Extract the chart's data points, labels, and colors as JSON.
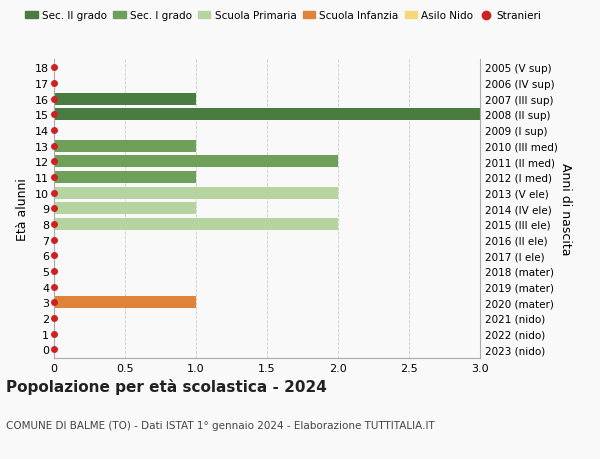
{
  "ages": [
    18,
    17,
    16,
    15,
    14,
    13,
    12,
    11,
    10,
    9,
    8,
    7,
    6,
    5,
    4,
    3,
    2,
    1,
    0
  ],
  "right_labels": [
    "2005 (V sup)",
    "2006 (IV sup)",
    "2007 (III sup)",
    "2008 (II sup)",
    "2009 (I sup)",
    "2010 (III med)",
    "2011 (II med)",
    "2012 (I med)",
    "2013 (V ele)",
    "2014 (IV ele)",
    "2015 (III ele)",
    "2016 (II ele)",
    "2017 (I ele)",
    "2018 (mater)",
    "2019 (mater)",
    "2020 (mater)",
    "2021 (nido)",
    "2022 (nido)",
    "2023 (nido)"
  ],
  "bars": [
    {
      "age": 16,
      "value": 1.0,
      "color": "#4a7c42"
    },
    {
      "age": 15,
      "value": 3.0,
      "color": "#4a7c42"
    },
    {
      "age": 13,
      "value": 1.0,
      "color": "#6fa05a"
    },
    {
      "age": 12,
      "value": 2.0,
      "color": "#6fa05a"
    },
    {
      "age": 11,
      "value": 1.0,
      "color": "#6fa05a"
    },
    {
      "age": 10,
      "value": 2.0,
      "color": "#b5d4a0"
    },
    {
      "age": 9,
      "value": 1.0,
      "color": "#b5d4a0"
    },
    {
      "age": 8,
      "value": 2.0,
      "color": "#b5d4a0"
    },
    {
      "age": 3,
      "value": 1.0,
      "color": "#e0833a"
    }
  ],
  "dot_ages": [
    18,
    17,
    16,
    15,
    14,
    13,
    12,
    11,
    10,
    9,
    8,
    7,
    6,
    5,
    4,
    3,
    2,
    1,
    0
  ],
  "dot_color": "#cc2222",
  "legend_items": [
    {
      "label": "Sec. II grado",
      "color": "#4a7c42",
      "type": "patch"
    },
    {
      "label": "Sec. I grado",
      "color": "#6fa05a",
      "type": "patch"
    },
    {
      "label": "Scuola Primaria",
      "color": "#b5d4a0",
      "type": "patch"
    },
    {
      "label": "Scuola Infanzia",
      "color": "#e0833a",
      "type": "patch"
    },
    {
      "label": "Asilo Nido",
      "color": "#f5d87a",
      "type": "patch"
    },
    {
      "label": "Stranieri",
      "color": "#cc2222",
      "type": "dot"
    }
  ],
  "ylabel_left": "Età alunni",
  "ylabel_right": "Anni di nascita",
  "xlim": [
    0,
    3.0
  ],
  "xticks": [
    0,
    0.5,
    1.0,
    1.5,
    2.0,
    2.5,
    3.0
  ],
  "xtick_labels": [
    "0",
    "0.5",
    "1.0",
    "1.5",
    "2.0",
    "2.5",
    "3.0"
  ],
  "title": "Popolazione per età scolastica - 2024",
  "subtitle": "COMUNE DI BALME (TO) - Dati ISTAT 1° gennaio 2024 - Elaborazione TUTTITALIA.IT",
  "bar_height": 0.78,
  "background_color": "#f9f9f9",
  "grid_color": "#cccccc"
}
